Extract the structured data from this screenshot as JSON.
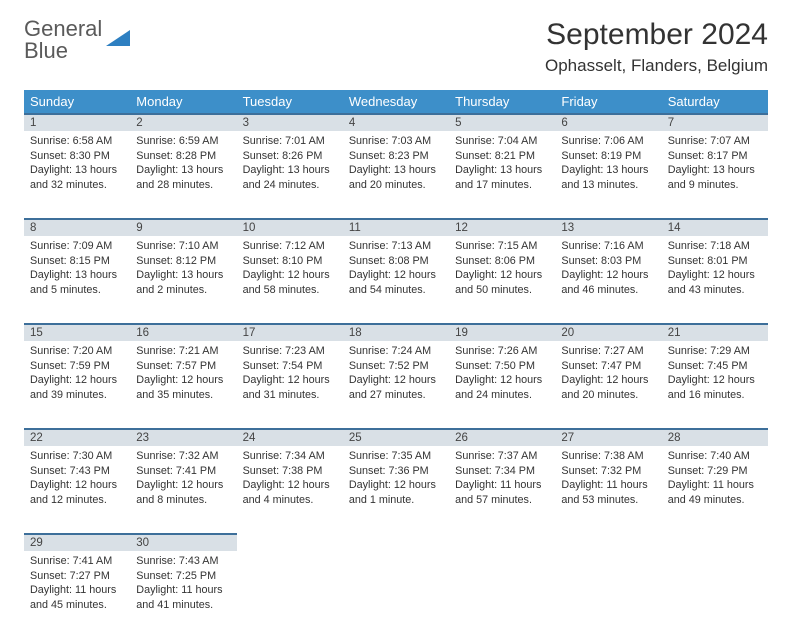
{
  "logo": {
    "line1": "General",
    "line2": "Blue"
  },
  "title": "September 2024",
  "location": "Ophasselt, Flanders, Belgium",
  "colors": {
    "header_bg": "#3d8fc9",
    "header_text": "#ffffff",
    "daynum_bg": "#d9e0e6",
    "daynum_border": "#3d6f9a",
    "logo_gray": "#5a5a5a",
    "logo_blue": "#2d7fc1"
  },
  "weekdays": [
    "Sunday",
    "Monday",
    "Tuesday",
    "Wednesday",
    "Thursday",
    "Friday",
    "Saturday"
  ],
  "weeks": [
    [
      {
        "n": "1",
        "sr": "6:58 AM",
        "ss": "8:30 PM",
        "dl": "13 hours and 32 minutes."
      },
      {
        "n": "2",
        "sr": "6:59 AM",
        "ss": "8:28 PM",
        "dl": "13 hours and 28 minutes."
      },
      {
        "n": "3",
        "sr": "7:01 AM",
        "ss": "8:26 PM",
        "dl": "13 hours and 24 minutes."
      },
      {
        "n": "4",
        "sr": "7:03 AM",
        "ss": "8:23 PM",
        "dl": "13 hours and 20 minutes."
      },
      {
        "n": "5",
        "sr": "7:04 AM",
        "ss": "8:21 PM",
        "dl": "13 hours and 17 minutes."
      },
      {
        "n": "6",
        "sr": "7:06 AM",
        "ss": "8:19 PM",
        "dl": "13 hours and 13 minutes."
      },
      {
        "n": "7",
        "sr": "7:07 AM",
        "ss": "8:17 PM",
        "dl": "13 hours and 9 minutes."
      }
    ],
    [
      {
        "n": "8",
        "sr": "7:09 AM",
        "ss": "8:15 PM",
        "dl": "13 hours and 5 minutes."
      },
      {
        "n": "9",
        "sr": "7:10 AM",
        "ss": "8:12 PM",
        "dl": "13 hours and 2 minutes."
      },
      {
        "n": "10",
        "sr": "7:12 AM",
        "ss": "8:10 PM",
        "dl": "12 hours and 58 minutes."
      },
      {
        "n": "11",
        "sr": "7:13 AM",
        "ss": "8:08 PM",
        "dl": "12 hours and 54 minutes."
      },
      {
        "n": "12",
        "sr": "7:15 AM",
        "ss": "8:06 PM",
        "dl": "12 hours and 50 minutes."
      },
      {
        "n": "13",
        "sr": "7:16 AM",
        "ss": "8:03 PM",
        "dl": "12 hours and 46 minutes."
      },
      {
        "n": "14",
        "sr": "7:18 AM",
        "ss": "8:01 PM",
        "dl": "12 hours and 43 minutes."
      }
    ],
    [
      {
        "n": "15",
        "sr": "7:20 AM",
        "ss": "7:59 PM",
        "dl": "12 hours and 39 minutes."
      },
      {
        "n": "16",
        "sr": "7:21 AM",
        "ss": "7:57 PM",
        "dl": "12 hours and 35 minutes."
      },
      {
        "n": "17",
        "sr": "7:23 AM",
        "ss": "7:54 PM",
        "dl": "12 hours and 31 minutes."
      },
      {
        "n": "18",
        "sr": "7:24 AM",
        "ss": "7:52 PM",
        "dl": "12 hours and 27 minutes."
      },
      {
        "n": "19",
        "sr": "7:26 AM",
        "ss": "7:50 PM",
        "dl": "12 hours and 24 minutes."
      },
      {
        "n": "20",
        "sr": "7:27 AM",
        "ss": "7:47 PM",
        "dl": "12 hours and 20 minutes."
      },
      {
        "n": "21",
        "sr": "7:29 AM",
        "ss": "7:45 PM",
        "dl": "12 hours and 16 minutes."
      }
    ],
    [
      {
        "n": "22",
        "sr": "7:30 AM",
        "ss": "7:43 PM",
        "dl": "12 hours and 12 minutes."
      },
      {
        "n": "23",
        "sr": "7:32 AM",
        "ss": "7:41 PM",
        "dl": "12 hours and 8 minutes."
      },
      {
        "n": "24",
        "sr": "7:34 AM",
        "ss": "7:38 PM",
        "dl": "12 hours and 4 minutes."
      },
      {
        "n": "25",
        "sr": "7:35 AM",
        "ss": "7:36 PM",
        "dl": "12 hours and 1 minute."
      },
      {
        "n": "26",
        "sr": "7:37 AM",
        "ss": "7:34 PM",
        "dl": "11 hours and 57 minutes."
      },
      {
        "n": "27",
        "sr": "7:38 AM",
        "ss": "7:32 PM",
        "dl": "11 hours and 53 minutes."
      },
      {
        "n": "28",
        "sr": "7:40 AM",
        "ss": "7:29 PM",
        "dl": "11 hours and 49 minutes."
      }
    ],
    [
      {
        "n": "29",
        "sr": "7:41 AM",
        "ss": "7:27 PM",
        "dl": "11 hours and 45 minutes."
      },
      {
        "n": "30",
        "sr": "7:43 AM",
        "ss": "7:25 PM",
        "dl": "11 hours and 41 minutes."
      },
      null,
      null,
      null,
      null,
      null
    ]
  ],
  "labels": {
    "sunrise": "Sunrise:",
    "sunset": "Sunset:",
    "daylight": "Daylight:"
  }
}
